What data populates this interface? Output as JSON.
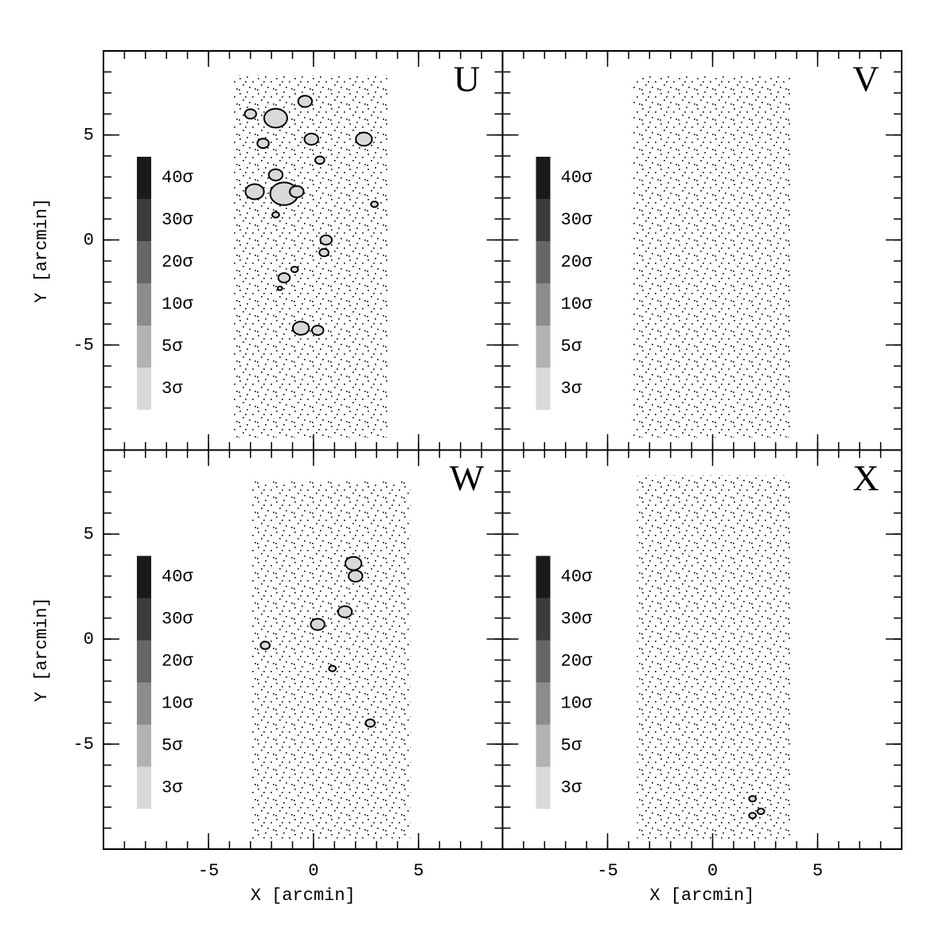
{
  "chart_data": [
    {
      "type": "density-map",
      "title": "U",
      "ylabel": "Y [arcmin]",
      "xlim": [
        -10,
        9
      ],
      "ylim": [
        -10,
        9
      ],
      "xticks": [
        -5,
        0,
        5
      ],
      "yticks": [
        -5,
        0,
        5
      ],
      "minor_ticks": [
        -9,
        -8,
        -7,
        -6,
        -5,
        -4,
        -3,
        -2,
        -1,
        0,
        1,
        2,
        3,
        4,
        5,
        6,
        7,
        8
      ],
      "show_xtick_labels": false,
      "show_ytick_labels": true,
      "field": {
        "x": [
          -3.8,
          3.6
        ],
        "y": [
          -9.4,
          7.85
        ]
      },
      "clumps": {
        "x": [
          -1.8,
          -3.0,
          -0.4,
          -2.4,
          -0.1,
          0.3,
          2.4,
          -1.8,
          -2.8,
          -1.4,
          -0.8,
          -1.8,
          2.9,
          0.6,
          0.5,
          -1.4,
          -0.9,
          -1.6,
          -0.6,
          0.2
        ],
        "y": [
          5.8,
          6.0,
          6.6,
          4.6,
          4.8,
          3.8,
          4.8,
          3.1,
          2.3,
          2.2,
          2.3,
          1.2,
          1.7,
          0.0,
          -0.6,
          -1.8,
          -1.4,
          -2.3,
          -4.2,
          -4.3
        ],
        "r": [
          0.5,
          0.25,
          0.3,
          0.25,
          0.3,
          0.2,
          0.35,
          0.3,
          0.4,
          0.6,
          0.3,
          0.15,
          0.15,
          0.25,
          0.2,
          0.25,
          0.15,
          0.1,
          0.35,
          0.25
        ]
      }
    },
    {
      "type": "density-map",
      "title": "V",
      "xlim": [
        -10,
        9
      ],
      "ylim": [
        -10,
        9
      ],
      "xticks": [
        -5,
        0,
        5
      ],
      "yticks": [
        -5,
        0,
        5
      ],
      "minor_ticks": [
        -9,
        -8,
        -7,
        -6,
        -5,
        -4,
        -3,
        -2,
        -1,
        0,
        1,
        2,
        3,
        4,
        5,
        6,
        7,
        8
      ],
      "show_xtick_labels": false,
      "show_ytick_labels": false,
      "field": {
        "x": [
          -3.8,
          3.7
        ],
        "y": [
          -9.4,
          7.8
        ]
      },
      "clumps": {
        "x": [],
        "y": [],
        "r": []
      }
    },
    {
      "type": "density-map",
      "title": "W",
      "xlabel": "X [arcmin]",
      "ylabel": "Y [arcmin]",
      "xlim": [
        -10,
        9
      ],
      "ylim": [
        -10,
        9
      ],
      "xticks": [
        -5,
        0,
        5
      ],
      "yticks": [
        -5,
        0,
        5
      ],
      "minor_ticks": [
        -9,
        -8,
        -7,
        -6,
        -5,
        -4,
        -3,
        -2,
        -1,
        0,
        1,
        2,
        3,
        4,
        5,
        6,
        7,
        8
      ],
      "show_xtick_labels": true,
      "show_ytick_labels": true,
      "field": {
        "x": [
          -3.0,
          4.6
        ],
        "y": [
          -9.5,
          7.5
        ]
      },
      "clumps": {
        "x": [
          1.9,
          2.0,
          1.5,
          0.2,
          -2.3,
          0.9,
          2.7
        ],
        "y": [
          3.6,
          3.0,
          1.3,
          0.7,
          -0.3,
          -1.4,
          -4.0
        ],
        "r": [
          0.35,
          0.3,
          0.3,
          0.3,
          0.2,
          0.15,
          0.2
        ]
      }
    },
    {
      "type": "density-map",
      "title": "X",
      "xlabel": "X [arcmin]",
      "xlim": [
        -10,
        9
      ],
      "ylim": [
        -10,
        9
      ],
      "xticks": [
        -5,
        0,
        5
      ],
      "yticks": [
        -5,
        0,
        5
      ],
      "minor_ticks": [
        -9,
        -8,
        -7,
        -6,
        -5,
        -4,
        -3,
        -2,
        -1,
        0,
        1,
        2,
        3,
        4,
        5,
        6,
        7,
        8
      ],
      "show_xtick_labels": true,
      "show_ytick_labels": false,
      "field": {
        "x": [
          -3.6,
          3.7
        ],
        "y": [
          -9.5,
          7.8
        ]
      },
      "clumps": {
        "x": [
          1.9,
          2.3,
          1.9
        ],
        "y": [
          -7.6,
          -8.2,
          -8.4
        ],
        "r": [
          0.15,
          0.15,
          0.15
        ]
      }
    }
  ],
  "levels": {
    "labels": [
      "40σ",
      "30σ",
      "20σ",
      "10σ",
      "5σ",
      "3σ"
    ],
    "colors": [
      "#1a1a1a",
      "#3c3c3c",
      "#666666",
      "#8c8c8c",
      "#b2b2b2",
      "#d9d9d9"
    ]
  }
}
